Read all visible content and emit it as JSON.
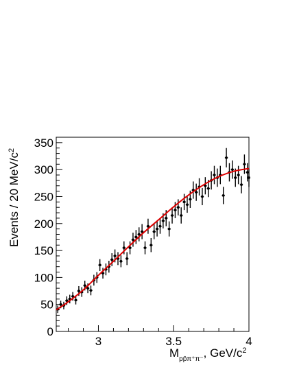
{
  "chart_data": {
    "type": "scatter",
    "title": "",
    "xlabel": {
      "main": "M",
      "subscript": "pp̄π⁺π⁻",
      "tail": ", GeV/c",
      "sup": "2"
    },
    "ylabel": {
      "main": "Events / 20 MeV/c",
      "sup": "2"
    },
    "xlim": [
      2.72,
      4.0
    ],
    "ylim": [
      0,
      360
    ],
    "x_ticks": [
      {
        "value": 3.0,
        "label": "3"
      },
      {
        "value": 3.5,
        "label": "3.5"
      },
      {
        "value": 4.0,
        "label": "4"
      }
    ],
    "y_ticks": [
      {
        "value": 0,
        "label": "0"
      },
      {
        "value": 50,
        "label": "50"
      },
      {
        "value": 100,
        "label": "100"
      },
      {
        "value": 150,
        "label": "150"
      },
      {
        "value": 200,
        "label": "200"
      },
      {
        "value": 250,
        "label": "250"
      },
      {
        "value": 300,
        "label": "300"
      },
      {
        "value": 350,
        "label": "350"
      }
    ],
    "x_minor_step": 0.1,
    "y_minor_step": 10,
    "bin_width": 0.02,
    "series": [
      {
        "kind": "data",
        "marker_color": "#000000",
        "points": [
          [
            2.73,
            41,
            7
          ],
          [
            2.75,
            50,
            7
          ],
          [
            2.77,
            48,
            7
          ],
          [
            2.79,
            57,
            8
          ],
          [
            2.81,
            60,
            8
          ],
          [
            2.83,
            65,
            8
          ],
          [
            2.85,
            58,
            8
          ],
          [
            2.87,
            75,
            9
          ],
          [
            2.89,
            73,
            9
          ],
          [
            2.91,
            85,
            9
          ],
          [
            2.93,
            80,
            9
          ],
          [
            2.95,
            76,
            9
          ],
          [
            2.97,
            95,
            10
          ],
          [
            2.99,
            100,
            10
          ],
          [
            3.01,
            123,
            11
          ],
          [
            3.03,
            108,
            10
          ],
          [
            3.05,
            115,
            11
          ],
          [
            3.07,
            120,
            11
          ],
          [
            3.09,
            133,
            12
          ],
          [
            3.11,
            140,
            12
          ],
          [
            3.13,
            135,
            12
          ],
          [
            3.15,
            130,
            11
          ],
          [
            3.17,
            155,
            12
          ],
          [
            3.19,
            135,
            12
          ],
          [
            3.21,
            155,
            12
          ],
          [
            3.23,
            170,
            13
          ],
          [
            3.25,
            175,
            13
          ],
          [
            3.27,
            180,
            13
          ],
          [
            3.29,
            185,
            14
          ],
          [
            3.31,
            155,
            12
          ],
          [
            3.33,
            195,
            14
          ],
          [
            3.35,
            160,
            13
          ],
          [
            3.37,
            185,
            14
          ],
          [
            3.39,
            190,
            14
          ],
          [
            3.41,
            195,
            14
          ],
          [
            3.43,
            205,
            14
          ],
          [
            3.45,
            210,
            15
          ],
          [
            3.47,
            190,
            14
          ],
          [
            3.49,
            215,
            15
          ],
          [
            3.51,
            225,
            15
          ],
          [
            3.53,
            230,
            15
          ],
          [
            3.55,
            215,
            15
          ],
          [
            3.57,
            240,
            15
          ],
          [
            3.59,
            235,
            15
          ],
          [
            3.61,
            245,
            16
          ],
          [
            3.63,
            262,
            16
          ],
          [
            3.65,
            258,
            16
          ],
          [
            3.67,
            268,
            16
          ],
          [
            3.69,
            250,
            16
          ],
          [
            3.71,
            270,
            16
          ],
          [
            3.73,
            265,
            16
          ],
          [
            3.75,
            280,
            17
          ],
          [
            3.77,
            290,
            17
          ],
          [
            3.79,
            285,
            17
          ],
          [
            3.81,
            290,
            17
          ],
          [
            3.83,
            252,
            16
          ],
          [
            3.85,
            322,
            18
          ],
          [
            3.87,
            295,
            17
          ],
          [
            3.89,
            300,
            17
          ],
          [
            3.91,
            285,
            17
          ],
          [
            3.93,
            290,
            17
          ],
          [
            3.95,
            272,
            16
          ],
          [
            3.97,
            310,
            18
          ],
          [
            3.99,
            295,
            17
          ],
          [
            4.0,
            285,
            17
          ]
        ]
      },
      {
        "kind": "fit",
        "line_color": "#dd0000",
        "points": [
          [
            2.72,
            40
          ],
          [
            2.8,
            55
          ],
          [
            2.9,
            77
          ],
          [
            3.0,
            104
          ],
          [
            3.1,
            130
          ],
          [
            3.2,
            157
          ],
          [
            3.3,
            183
          ],
          [
            3.4,
            207
          ],
          [
            3.5,
            231
          ],
          [
            3.6,
            253
          ],
          [
            3.7,
            272
          ],
          [
            3.8,
            287
          ],
          [
            3.9,
            297
          ],
          [
            4.0,
            302
          ]
        ]
      }
    ]
  }
}
